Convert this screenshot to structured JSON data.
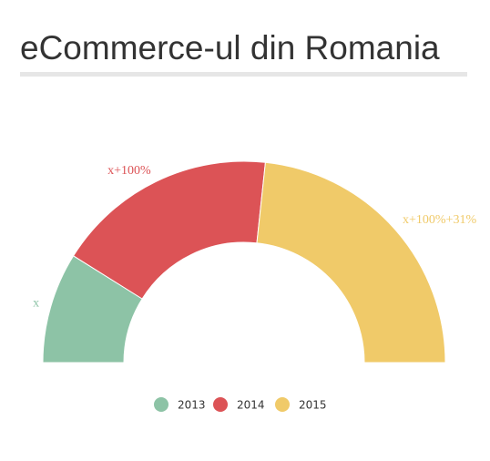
{
  "chart_data": {
    "type": "donut",
    "title": "eCommerce-ul din Romania",
    "categories": [
      "2013",
      "2014",
      "2015"
    ],
    "values": [
      1,
      2,
      2.62
    ],
    "value_labels": [
      "x",
      "x+100%",
      "x+100%+31%"
    ],
    "colors": [
      "#8dc3a6",
      "#dc5356",
      "#f0ca69"
    ],
    "legend": "bottom"
  }
}
